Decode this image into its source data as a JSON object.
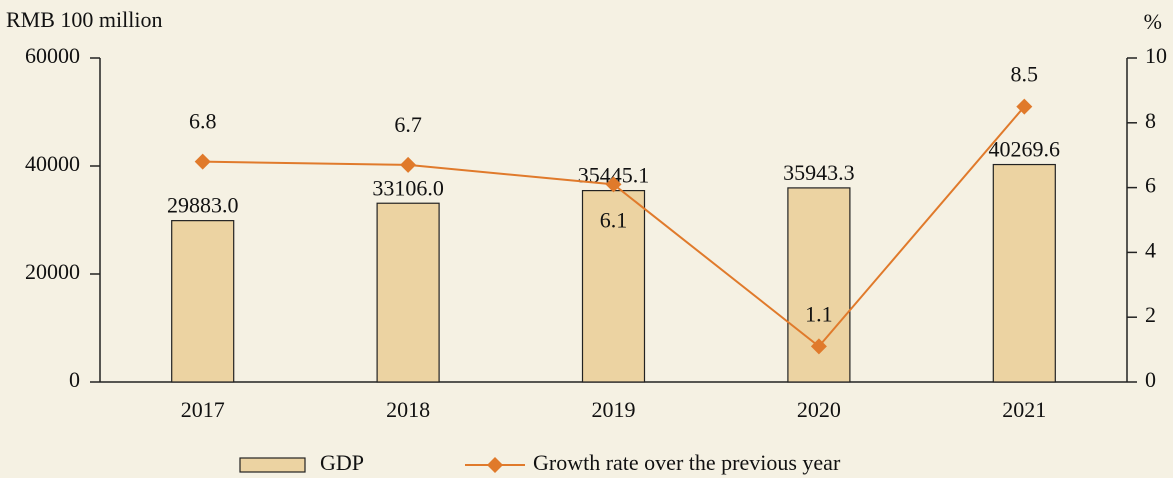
{
  "chart_data": {
    "type": "bar-line",
    "y_label": "RMB 100 million",
    "y2_label": "%",
    "categories": [
      "2017",
      "2018",
      "2019",
      "2020",
      "2021"
    ],
    "series": [
      {
        "name": "GDP",
        "type": "bar",
        "color": "#ecd3a2",
        "values": [
          29883,
          33106,
          35445.1,
          35943.3,
          40269.6
        ],
        "value_labels": [
          "29883.0",
          "33106.0",
          "35445.1",
          "35943.3",
          "40269.6"
        ]
      },
      {
        "name": "Growth rate over the previous year",
        "type": "line",
        "axis": "y2",
        "color": "#e07a2b",
        "values": [
          6.8,
          6.7,
          6.1,
          1.1,
          8.5
        ]
      }
    ],
    "ylim": [
      0,
      60000
    ],
    "yticks": [
      0,
      20000,
      40000,
      60000
    ],
    "y2lim": [
      0,
      10
    ],
    "y2ticks": [
      0,
      2,
      4,
      6,
      8,
      10
    ]
  }
}
